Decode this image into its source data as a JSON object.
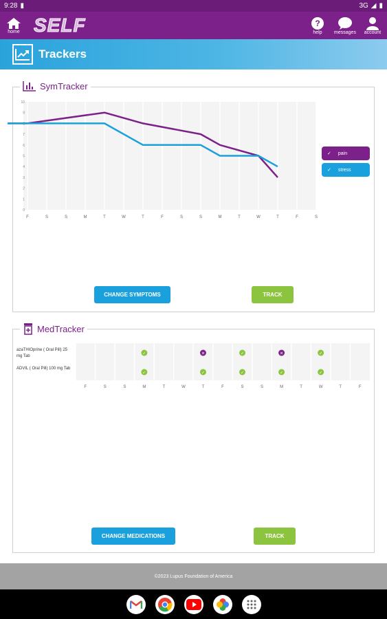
{
  "status": {
    "time": "9:28",
    "network": "3G"
  },
  "nav": {
    "home": "home",
    "logo": "SELF",
    "help": "help",
    "messages": "messages",
    "account": "account"
  },
  "banner": {
    "title": "Trackers"
  },
  "symtracker": {
    "title": "SymTracker",
    "change_label": "CHANGE SYMPTOMS",
    "track_label": "TRACK",
    "legend": [
      {
        "label": "pain",
        "color": "#7b2189"
      },
      {
        "label": "stress",
        "color": "#1aa0dc"
      }
    ]
  },
  "chart_data": {
    "type": "line",
    "categories": [
      "F",
      "S",
      "S",
      "M",
      "T",
      "W",
      "T",
      "F",
      "S",
      "S",
      "M",
      "T",
      "W",
      "T",
      "F",
      "S"
    ],
    "ylim": [
      0,
      10
    ],
    "yticks": [
      0,
      1,
      2,
      3,
      4,
      5,
      6,
      7,
      8,
      9,
      10
    ],
    "grid": true,
    "legend_position": "right",
    "series": [
      {
        "name": "pain",
        "color": "#7b2189",
        "values": [
          8,
          null,
          null,
          null,
          9,
          null,
          8,
          null,
          null,
          7,
          6,
          null,
          5,
          3,
          null,
          null
        ]
      },
      {
        "name": "stress",
        "color": "#1aa0dc",
        "values": [
          8,
          null,
          null,
          null,
          8,
          null,
          6,
          null,
          null,
          6,
          5,
          null,
          5,
          4,
          null,
          null
        ]
      }
    ],
    "leading_value": 8
  },
  "medtracker": {
    "title": "MedTracker",
    "change_label": "CHANGE MEDICATIONS",
    "track_label": "TRACK",
    "days": [
      "F",
      "S",
      "S",
      "M",
      "T",
      "W",
      "T",
      "F",
      "S",
      "S",
      "M",
      "T",
      "W",
      "T",
      "F"
    ],
    "meds": [
      {
        "name": "azaTHIOprine ( Oral Pill) 25 mg Tab",
        "marks": [
          null,
          null,
          null,
          "taken",
          null,
          null,
          "missed",
          null,
          "taken",
          null,
          "missed",
          null,
          "taken",
          null,
          null
        ]
      },
      {
        "name": "ADVIL ( Oral Pill) 100 mg Tab",
        "marks": [
          null,
          null,
          null,
          "taken",
          null,
          null,
          "taken",
          null,
          "taken",
          null,
          "taken",
          null,
          "taken",
          null,
          null
        ]
      }
    ],
    "taken_color": "#8cc43f",
    "missed_color": "#7b2189"
  },
  "footer": {
    "copyright": "©2023 Lupus Foundation of America"
  },
  "dock": [
    "gmail-icon",
    "chrome-icon",
    "youtube-icon",
    "photos-icon",
    "app-drawer-icon"
  ]
}
